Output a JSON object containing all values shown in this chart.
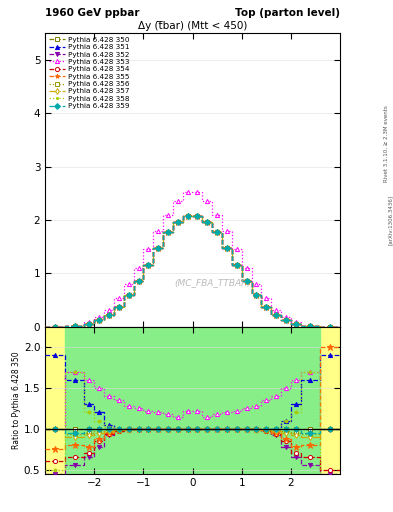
{
  "title_left": "1960 GeV ppbar",
  "title_right": "Top (parton level)",
  "plot_title": "Δy (t̅bar) (Mtt < 450)",
  "watermark": "(MC_FBA_TTBAR)",
  "right_label": "Rivet 3.1.10, ≥ 2.3M events",
  "arxiv_label": "[arXiv:1306.3436]",
  "ylabel_ratio": "Ratio to Pythia 6.428 350",
  "xlim": [
    -3.0,
    3.0
  ],
  "ylim_main": [
    0.0,
    5.5
  ],
  "ylim_ratio": [
    0.45,
    2.25
  ],
  "yticks_main": [
    0,
    1,
    2,
    3,
    4,
    5
  ],
  "yticks_ratio": [
    0.5,
    1.0,
    1.5,
    2.0
  ],
  "xticks": [
    -2,
    -1,
    0,
    1,
    2
  ],
  "series_labels": [
    "Pythia 6.428 350",
    "Pythia 6.428 351",
    "Pythia 6.428 352",
    "Pythia 6.428 353",
    "Pythia 6.428 354",
    "Pythia 6.428 355",
    "Pythia 6.428 356",
    "Pythia 6.428 357",
    "Pythia 6.428 358",
    "Pythia 6.428 359"
  ],
  "colors": [
    "#808000",
    "#0000dd",
    "#8800aa",
    "#ff00ff",
    "#cc0000",
    "#ff6600",
    "#999900",
    "#ccaa00",
    "#aacc00",
    "#00aaaa"
  ],
  "linestyles": [
    "--",
    "--",
    "--",
    ":",
    "--",
    "--",
    ":",
    "-.",
    ":",
    "--"
  ],
  "markers": [
    "s",
    "^",
    "v",
    "^",
    "o",
    "*",
    "s",
    "d",
    ".",
    "D"
  ],
  "filled": [
    false,
    true,
    true,
    false,
    false,
    true,
    false,
    false,
    true,
    true
  ],
  "x_edges": [
    -3.0,
    -2.6,
    -2.2,
    -2.0,
    -1.8,
    -1.6,
    -1.4,
    -1.2,
    -1.0,
    -0.8,
    -0.6,
    -0.4,
    -0.2,
    0.0,
    0.2,
    0.4,
    0.6,
    0.8,
    1.0,
    1.2,
    1.4,
    1.6,
    1.8,
    2.0,
    2.2,
    2.6,
    3.0
  ],
  "main_y": [
    [
      0.0,
      0.01,
      0.05,
      0.12,
      0.22,
      0.38,
      0.6,
      0.86,
      1.15,
      1.48,
      1.78,
      1.97,
      2.07,
      2.07,
      1.97,
      1.78,
      1.48,
      1.15,
      0.86,
      0.6,
      0.38,
      0.22,
      0.12,
      0.05,
      0.01,
      0.0
    ],
    [
      0.0,
      0.01,
      0.05,
      0.12,
      0.22,
      0.38,
      0.6,
      0.86,
      1.15,
      1.48,
      1.78,
      1.97,
      2.07,
      2.07,
      1.97,
      1.78,
      1.48,
      1.15,
      0.86,
      0.6,
      0.38,
      0.22,
      0.12,
      0.05,
      0.01,
      0.0
    ],
    [
      0.0,
      0.01,
      0.05,
      0.12,
      0.22,
      0.38,
      0.6,
      0.86,
      1.15,
      1.48,
      1.78,
      1.97,
      2.07,
      2.07,
      1.97,
      1.78,
      1.48,
      1.15,
      0.86,
      0.6,
      0.38,
      0.22,
      0.12,
      0.05,
      0.01,
      0.0
    ],
    [
      0.0,
      0.02,
      0.09,
      0.18,
      0.32,
      0.54,
      0.8,
      1.1,
      1.45,
      1.8,
      2.1,
      2.35,
      2.52,
      2.52,
      2.35,
      2.1,
      1.8,
      1.45,
      1.1,
      0.8,
      0.54,
      0.32,
      0.18,
      0.09,
      0.02,
      0.0
    ],
    [
      0.0,
      0.01,
      0.05,
      0.12,
      0.22,
      0.38,
      0.6,
      0.86,
      1.15,
      1.48,
      1.78,
      1.97,
      2.07,
      2.07,
      1.97,
      1.78,
      1.48,
      1.15,
      0.86,
      0.6,
      0.38,
      0.22,
      0.12,
      0.05,
      0.01,
      0.0
    ],
    [
      0.0,
      0.01,
      0.05,
      0.12,
      0.22,
      0.38,
      0.6,
      0.86,
      1.15,
      1.48,
      1.78,
      1.97,
      2.07,
      2.07,
      1.97,
      1.78,
      1.48,
      1.15,
      0.86,
      0.6,
      0.38,
      0.22,
      0.12,
      0.05,
      0.01,
      0.0
    ],
    [
      0.0,
      0.01,
      0.05,
      0.12,
      0.22,
      0.38,
      0.6,
      0.86,
      1.15,
      1.48,
      1.78,
      1.97,
      2.07,
      2.07,
      1.97,
      1.78,
      1.48,
      1.15,
      0.86,
      0.6,
      0.38,
      0.22,
      0.12,
      0.05,
      0.01,
      0.0
    ],
    [
      0.0,
      0.01,
      0.05,
      0.12,
      0.22,
      0.38,
      0.6,
      0.86,
      1.15,
      1.48,
      1.78,
      1.97,
      2.07,
      2.07,
      1.97,
      1.78,
      1.48,
      1.15,
      0.86,
      0.6,
      0.38,
      0.22,
      0.12,
      0.05,
      0.01,
      0.0
    ],
    [
      0.0,
      0.01,
      0.05,
      0.12,
      0.22,
      0.38,
      0.6,
      0.86,
      1.15,
      1.48,
      1.78,
      1.97,
      2.07,
      2.07,
      1.97,
      1.78,
      1.48,
      1.15,
      0.86,
      0.6,
      0.38,
      0.22,
      0.12,
      0.05,
      0.01,
      0.0
    ],
    [
      0.0,
      0.01,
      0.05,
      0.12,
      0.22,
      0.38,
      0.6,
      0.86,
      1.15,
      1.48,
      1.78,
      1.97,
      2.07,
      2.07,
      1.97,
      1.78,
      1.48,
      1.15,
      0.86,
      0.6,
      0.38,
      0.22,
      0.12,
      0.05,
      0.01,
      0.0
    ]
  ],
  "ratio_y": [
    [
      1.0,
      1.0,
      1.0,
      1.0,
      1.0,
      1.0,
      1.0,
      1.0,
      1.0,
      1.0,
      1.0,
      1.0,
      1.0,
      1.0,
      1.0,
      1.0,
      1.0,
      1.0,
      1.0,
      1.0,
      1.0,
      1.0,
      1.0,
      1.0,
      1.0,
      1.0
    ],
    [
      1.9,
      1.6,
      1.3,
      1.2,
      1.05,
      1.0,
      1.0,
      1.0,
      1.0,
      1.0,
      1.0,
      1.0,
      1.0,
      1.0,
      1.0,
      1.0,
      1.0,
      1.0,
      1.0,
      1.0,
      1.0,
      1.0,
      1.1,
      1.3,
      1.6,
      1.9
    ],
    [
      0.45,
      0.55,
      0.65,
      0.78,
      0.92,
      0.97,
      1.0,
      1.0,
      1.0,
      1.0,
      1.0,
      1.0,
      1.0,
      1.0,
      1.0,
      1.0,
      1.0,
      1.0,
      1.0,
      1.0,
      0.97,
      0.92,
      0.78,
      0.65,
      0.55,
      0.45
    ],
    [
      1.0,
      1.7,
      1.6,
      1.5,
      1.4,
      1.35,
      1.28,
      1.25,
      1.22,
      1.2,
      1.18,
      1.15,
      1.22,
      1.22,
      1.15,
      1.18,
      1.2,
      1.22,
      1.25,
      1.28,
      1.35,
      1.4,
      1.5,
      1.6,
      1.7,
      1.0
    ],
    [
      0.6,
      0.65,
      0.7,
      0.85,
      0.93,
      0.97,
      1.0,
      1.0,
      1.0,
      1.0,
      1.0,
      1.0,
      1.0,
      1.0,
      1.0,
      1.0,
      1.0,
      1.0,
      1.0,
      1.0,
      0.97,
      0.93,
      0.85,
      0.7,
      0.65,
      0.5
    ],
    [
      0.75,
      0.8,
      0.78,
      0.88,
      0.95,
      0.98,
      1.0,
      1.0,
      1.0,
      1.0,
      1.0,
      1.0,
      1.0,
      1.0,
      1.0,
      1.0,
      1.0,
      1.0,
      1.0,
      1.0,
      0.98,
      0.95,
      0.88,
      0.78,
      0.8,
      2.0
    ],
    [
      1.0,
      0.93,
      0.95,
      0.97,
      0.98,
      0.99,
      1.0,
      1.0,
      1.0,
      1.0,
      1.0,
      1.0,
      1.0,
      1.0,
      1.0,
      1.0,
      1.0,
      1.0,
      1.0,
      1.0,
      0.99,
      0.98,
      0.97,
      0.95,
      0.93,
      1.0
    ],
    [
      1.0,
      0.9,
      0.92,
      0.95,
      0.97,
      0.98,
      0.99,
      1.0,
      1.0,
      1.0,
      1.0,
      1.0,
      1.0,
      1.0,
      1.0,
      1.0,
      1.0,
      1.0,
      1.0,
      0.99,
      0.98,
      0.97,
      0.95,
      0.92,
      0.9,
      1.0
    ],
    [
      0.5,
      1.7,
      1.2,
      1.1,
      1.02,
      1.0,
      1.0,
      1.0,
      1.0,
      1.0,
      1.0,
      1.0,
      1.0,
      1.0,
      1.0,
      1.0,
      1.0,
      1.0,
      1.0,
      1.0,
      1.0,
      1.0,
      1.1,
      1.2,
      1.7,
      0.4
    ],
    [
      1.0,
      0.95,
      1.0,
      1.0,
      1.0,
      1.0,
      1.0,
      1.0,
      1.0,
      1.0,
      1.0,
      1.0,
      1.0,
      1.0,
      1.0,
      1.0,
      1.0,
      1.0,
      1.0,
      1.0,
      1.0,
      1.0,
      1.0,
      1.0,
      0.95,
      1.0
    ]
  ],
  "ref_band_yellow": "#ffff88",
  "ref_band_green": "#88ee88",
  "ref_band_yellow_inner": "#ffff88",
  "ref_band_green_inner": "#88ee88"
}
